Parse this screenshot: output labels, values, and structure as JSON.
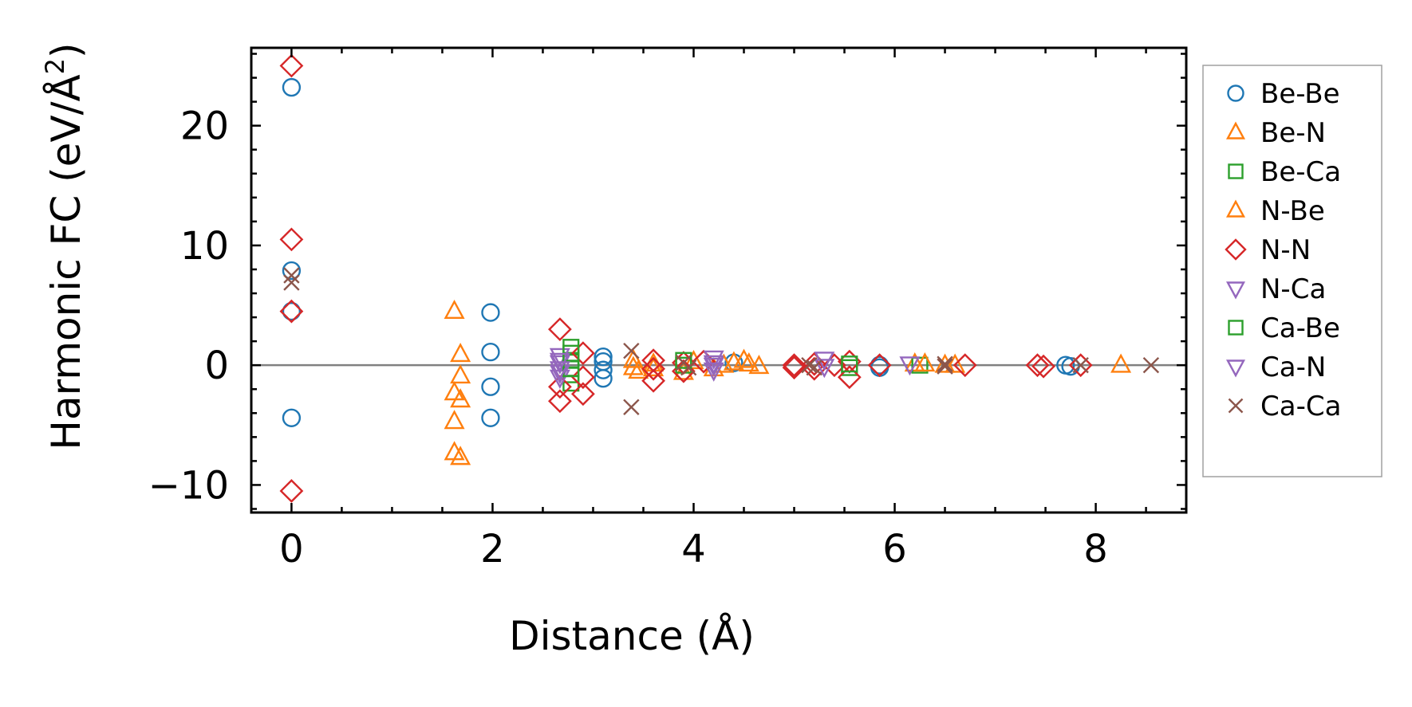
{
  "chart_data": {
    "type": "scatter",
    "xlabel": "Distance (Å)",
    "ylabel": "Harmonic FC (eV/Å",
    "ylabel_superscript": "2",
    "ylabel_suffix": ")",
    "xlim": [
      -0.4,
      8.9
    ],
    "ylim": [
      -12.3,
      26.5
    ],
    "x_ticks": [
      0,
      2,
      4,
      6,
      8
    ],
    "x_tick_labels": [
      "0",
      "2",
      "4",
      "6",
      "8"
    ],
    "y_ticks": [
      -10,
      0,
      10,
      20
    ],
    "y_tick_labels": [
      "−10",
      "0",
      "10",
      "20"
    ],
    "x_minor_step": 0.5,
    "y_minor_step": 2,
    "zero_line": true,
    "zero_line_color": "#808080",
    "grid": false,
    "legend_position": "outside-right",
    "legend_entries": [
      "Be-Be",
      "Be-N",
      "Be-Ca",
      "N-Be",
      "N-N",
      "N-Ca",
      "Ca-Be",
      "Ca-N",
      "Ca-Ca"
    ],
    "series": [
      {
        "name": "Be-Be",
        "marker": "circle",
        "color": "#1f77b4",
        "points": [
          [
            0,
            23.2
          ],
          [
            0,
            7.9
          ],
          [
            0,
            4.5
          ],
          [
            0,
            -4.4
          ],
          [
            1.98,
            4.4
          ],
          [
            1.98,
            1.1
          ],
          [
            1.98,
            -1.8
          ],
          [
            1.98,
            -4.4
          ],
          [
            3.1,
            0.7
          ],
          [
            3.1,
            0.3
          ],
          [
            3.1,
            -0.4
          ],
          [
            3.1,
            -1.1
          ],
          [
            4.4,
            0.2
          ],
          [
            5.85,
            0.0
          ],
          [
            5.85,
            -0.2
          ],
          [
            7.7,
            0.0
          ],
          [
            7.75,
            -0.1
          ]
        ]
      },
      {
        "name": "Be-N",
        "marker": "triangle-up",
        "color": "#ff7f0e",
        "points": [
          [
            1.62,
            4.5
          ],
          [
            1.62,
            -2.3
          ],
          [
            1.62,
            -4.7
          ],
          [
            1.62,
            -7.3
          ],
          [
            1.68,
            -7.7
          ],
          [
            1.68,
            0.9
          ],
          [
            1.68,
            -0.9
          ],
          [
            1.68,
            -2.9
          ],
          [
            3.4,
            0.4
          ],
          [
            3.45,
            -0.5
          ],
          [
            3.6,
            0.1
          ],
          [
            3.9,
            -0.6
          ],
          [
            4.0,
            0.3
          ],
          [
            4.3,
            0.0
          ],
          [
            4.5,
            0.4
          ],
          [
            4.55,
            0.1
          ],
          [
            4.65,
            -0.1
          ],
          [
            6.2,
            0.1
          ],
          [
            6.5,
            0.0
          ],
          [
            8.25,
            0.0
          ]
        ]
      },
      {
        "name": "Be-Ca",
        "marker": "square",
        "color": "#2ca02c",
        "points": [
          [
            2.78,
            1.5
          ],
          [
            2.78,
            0.4
          ],
          [
            2.78,
            -0.8
          ],
          [
            2.78,
            -1.5
          ],
          [
            3.9,
            0.0
          ],
          [
            5.55,
            -0.2
          ],
          [
            6.25,
            0.0
          ]
        ]
      },
      {
        "name": "N-Be",
        "marker": "triangle-up",
        "color": "#ff7f0e",
        "points": [
          [
            3.4,
            -0.2
          ],
          [
            3.6,
            -0.3
          ],
          [
            4.2,
            -0.3
          ],
          [
            4.4,
            0.2
          ],
          [
            6.3,
            0.1
          ],
          [
            6.6,
            0.0
          ]
        ]
      },
      {
        "name": "N-N",
        "marker": "diamond",
        "color": "#d62728",
        "points": [
          [
            0,
            25.0
          ],
          [
            0,
            10.5
          ],
          [
            0,
            4.5
          ],
          [
            0,
            -10.5
          ],
          [
            2.67,
            3.0
          ],
          [
            2.67,
            -1.8
          ],
          [
            2.67,
            -3.0
          ],
          [
            2.9,
            1.0
          ],
          [
            2.9,
            -1.0
          ],
          [
            2.9,
            -2.4
          ],
          [
            3.6,
            0.4
          ],
          [
            3.6,
            -0.3
          ],
          [
            3.6,
            -1.3
          ],
          [
            3.9,
            0.2
          ],
          [
            3.9,
            -0.5
          ],
          [
            4.1,
            0.3
          ],
          [
            5.0,
            0.0
          ],
          [
            5.0,
            -0.2
          ],
          [
            5.2,
            0.1
          ],
          [
            5.2,
            -0.3
          ],
          [
            5.4,
            0.0
          ],
          [
            5.55,
            0.3
          ],
          [
            5.55,
            -1.0
          ],
          [
            5.85,
            0.0
          ],
          [
            6.7,
            0.0
          ],
          [
            7.42,
            0.0
          ],
          [
            7.48,
            -0.1
          ],
          [
            7.85,
            0.0
          ]
        ]
      },
      {
        "name": "N-Ca",
        "marker": "triangle-down",
        "color": "#9467bd",
        "points": [
          [
            2.67,
            0.8
          ],
          [
            2.67,
            0.2
          ],
          [
            2.67,
            -0.6
          ],
          [
            2.67,
            -1.0
          ],
          [
            4.2,
            0.6
          ],
          [
            4.2,
            0.0
          ],
          [
            4.2,
            -0.4
          ],
          [
            5.3,
            0.5
          ],
          [
            6.15,
            0.1
          ]
        ]
      },
      {
        "name": "Ca-Be",
        "marker": "square",
        "color": "#2ca02c",
        "points": [
          [
            2.78,
            1.0
          ],
          [
            2.78,
            -0.3
          ],
          [
            3.9,
            0.4
          ],
          [
            5.55,
            0.1
          ]
        ]
      },
      {
        "name": "Ca-N",
        "marker": "triangle-down",
        "color": "#9467bd",
        "points": [
          [
            2.67,
            0.4
          ],
          [
            2.67,
            -0.3
          ],
          [
            4.2,
            0.2
          ],
          [
            5.3,
            -0.1
          ]
        ]
      },
      {
        "name": "Ca-Ca",
        "marker": "x",
        "color": "#8c564b",
        "points": [
          [
            0,
            7.5
          ],
          [
            0,
            6.9
          ],
          [
            3.38,
            1.2
          ],
          [
            3.38,
            -3.5
          ],
          [
            3.9,
            0.2
          ],
          [
            3.95,
            -0.2
          ],
          [
            5.15,
            0.0
          ],
          [
            5.2,
            -0.2
          ],
          [
            6.5,
            0.1
          ],
          [
            6.5,
            -0.1
          ],
          [
            7.85,
            0.0
          ],
          [
            8.55,
            0.0
          ]
        ]
      }
    ]
  }
}
